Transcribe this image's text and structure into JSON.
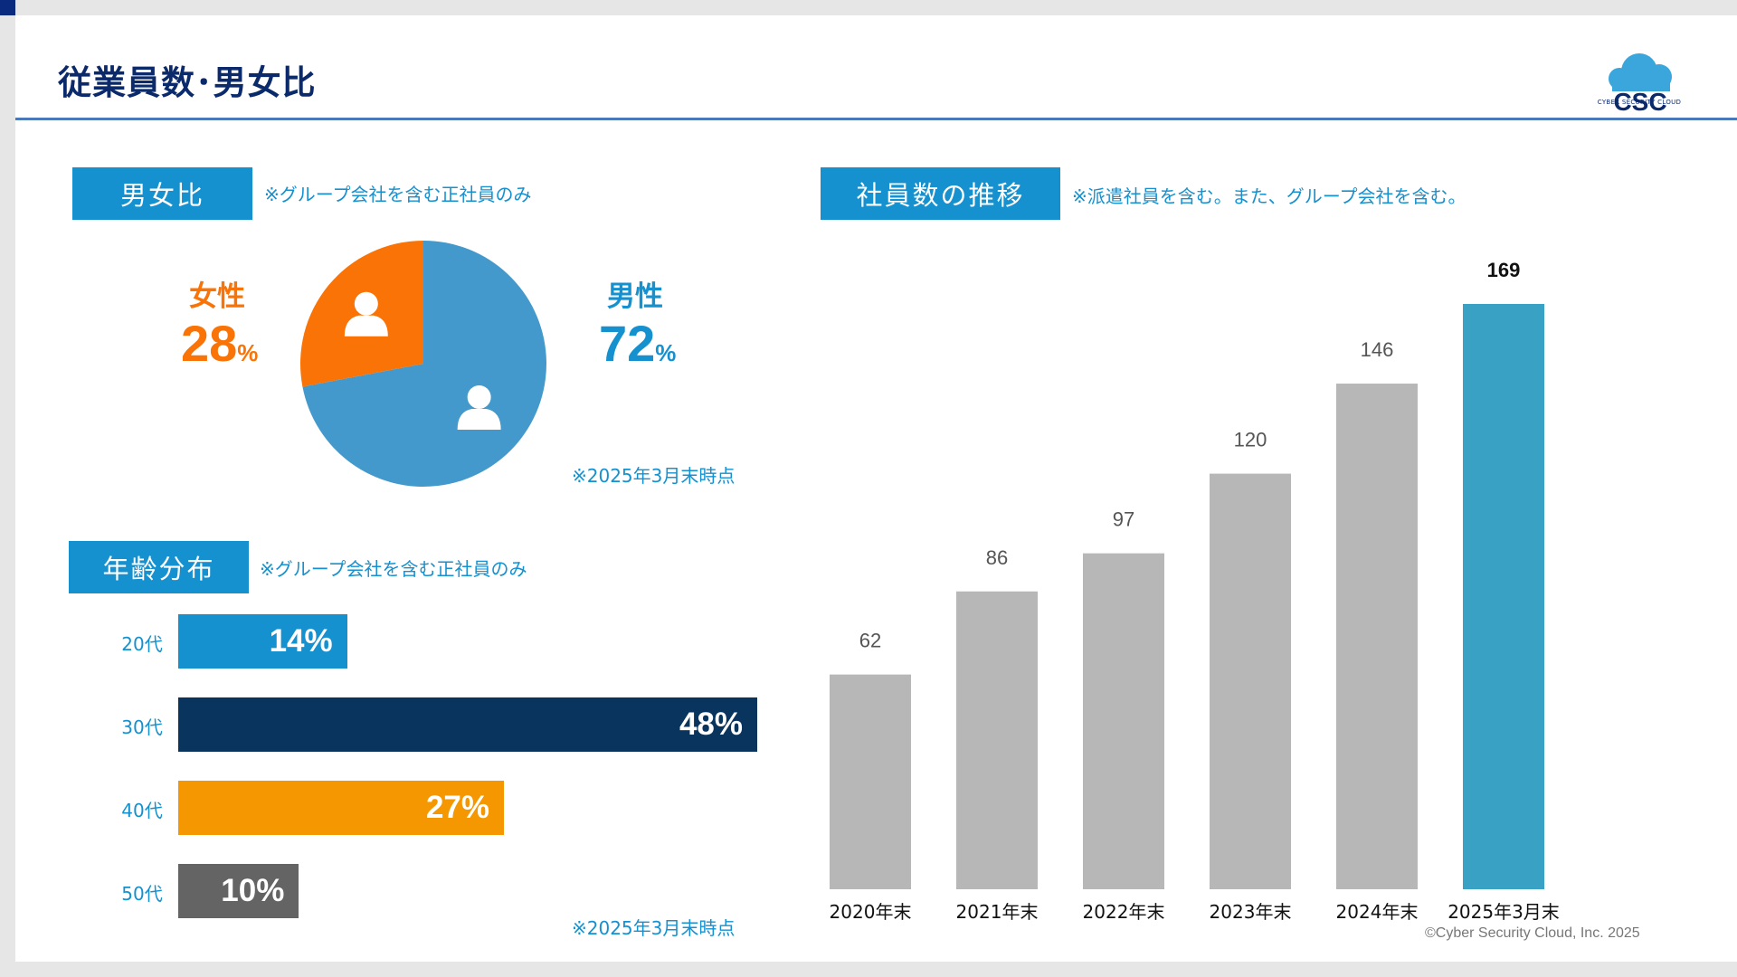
{
  "page": {
    "title": "従業員数･男女比",
    "logo_text": "CSC",
    "logo_sub": "CYBER SECURITY CLOUD",
    "copyright": "©Cyber Security Cloud, Inc. 2025"
  },
  "gender": {
    "label": "男女比",
    "note": "※グループ会社を含む正社員のみ",
    "as_of": "※2025年3月末時点",
    "female": {
      "label": "女性",
      "value": 28,
      "value_text": "28",
      "unit": "%",
      "color": "#f97306"
    },
    "male": {
      "label": "男性",
      "value": 72,
      "value_text": "72",
      "unit": "%",
      "color": "#4499cc"
    }
  },
  "age": {
    "label": "年齢分布",
    "note": "※グループ会社を含む正社員のみ",
    "as_of": "※2025年3月末時点",
    "rows": [
      {
        "label": "20代",
        "value": 14,
        "value_text": "14%",
        "color": "#1591cf"
      },
      {
        "label": "30代",
        "value": 48,
        "value_text": "48%",
        "color": "#08345e"
      },
      {
        "label": "40代",
        "value": 27,
        "value_text": "27%",
        "color": "#f59700"
      },
      {
        "label": "50代",
        "value": 10,
        "value_text": "10%",
        "color": "#646464"
      }
    ]
  },
  "headcount": {
    "label": "社員数の推移",
    "note": "※派遣社員を含む。また、グループ会社を含む。"
  },
  "chart_data": [
    {
      "type": "pie",
      "categories": [
        "女性",
        "男性"
      ],
      "values": [
        28,
        72
      ],
      "colors": [
        "#f97306",
        "#4499cc"
      ]
    },
    {
      "type": "bar",
      "orientation": "horizontal",
      "categories": [
        "20代",
        "30代",
        "40代",
        "50代"
      ],
      "values": [
        14,
        48,
        27,
        10
      ]
    },
    {
      "type": "bar",
      "categories": [
        "2020年末",
        "2021年末",
        "2022年末",
        "2023年末",
        "2024年末",
        "2025年3月末"
      ],
      "values": [
        62,
        86,
        97,
        120,
        146,
        169
      ],
      "ylim": [
        0,
        180
      ],
      "bar_color": "#b7b7b7",
      "highlight_color": "#38a1c4",
      "highlight_index": 5,
      "grid": false
    }
  ]
}
